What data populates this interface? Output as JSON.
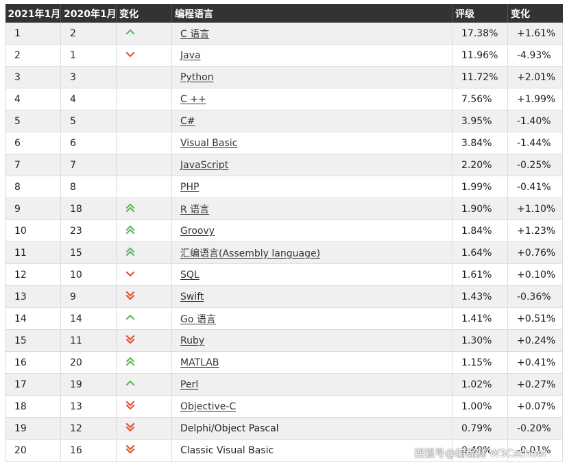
{
  "table": {
    "headers": [
      "2021年1月",
      "2020年1月",
      "变化",
      "编程语言",
      "评级",
      "变化"
    ],
    "rows": [
      {
        "rank2021": "1",
        "rank2020": "2",
        "trend": "up",
        "lang": "C 语言 ",
        "link": true,
        "rating": "17.38%",
        "change": "+1.61%"
      },
      {
        "rank2021": "2",
        "rank2020": "1",
        "trend": "down",
        "lang": "Java ",
        "link": true,
        "rating": "11.96%",
        "change": "-4.93%"
      },
      {
        "rank2021": "3",
        "rank2020": "3",
        "trend": "none",
        "lang": "Python ",
        "link": true,
        "rating": "11.72%",
        "change": "+2.01%"
      },
      {
        "rank2021": "4",
        "rank2020": "4",
        "trend": "none",
        "lang": "C ++ ",
        "link": true,
        "rating": "7.56%",
        "change": "+1.99%"
      },
      {
        "rank2021": "5",
        "rank2020": "5",
        "trend": "none",
        "lang": "C# ",
        "link": true,
        "rating": "3.95%",
        "change": "-1.40%"
      },
      {
        "rank2021": "6",
        "rank2020": "6",
        "trend": "none",
        "lang": "Visual Basic ",
        "link": true,
        "rating": "3.84%",
        "change": "-1.44%"
      },
      {
        "rank2021": "7",
        "rank2020": "7",
        "trend": "none",
        "lang": "JavaScript ",
        "link": true,
        "rating": "2.20%",
        "change": "-0.25%"
      },
      {
        "rank2021": "8",
        "rank2020": "8",
        "trend": "none",
        "lang": "PHP ",
        "link": true,
        "rating": "1.99%",
        "change": "-0.41%"
      },
      {
        "rank2021": "9",
        "rank2020": "18",
        "trend": "upup",
        "lang": "R 语言 ",
        "link": true,
        "rating": "1.90%",
        "change": "+1.10%"
      },
      {
        "rank2021": "10",
        "rank2020": "23",
        "trend": "upup",
        "lang": "Groovy ",
        "link": true,
        "rating": "1.84%",
        "change": "+1.23%"
      },
      {
        "rank2021": "11",
        "rank2020": "15",
        "trend": "upup",
        "lang": "汇编语言(Assembly language) ",
        "link": true,
        "rating": "1.64%",
        "change": "+0.76%"
      },
      {
        "rank2021": "12",
        "rank2020": "10",
        "trend": "down",
        "lang": "SQL ",
        "link": true,
        "rating": "1.61%",
        "change": "+0.10%"
      },
      {
        "rank2021": "13",
        "rank2020": "9",
        "trend": "downdown",
        "lang": "Swift ",
        "link": true,
        "rating": "1.43%",
        "change": "-0.36%"
      },
      {
        "rank2021": "14",
        "rank2020": "14",
        "trend": "up",
        "lang": "Go 语言 ",
        "link": true,
        "rating": "1.41%",
        "change": "+0.51%"
      },
      {
        "rank2021": "15",
        "rank2020": "11",
        "trend": "downdown",
        "lang": "Ruby ",
        "link": true,
        "rating": "1.30%",
        "change": "+0.24%"
      },
      {
        "rank2021": "16",
        "rank2020": "20",
        "trend": "upup",
        "lang": "MATLAB ",
        "link": true,
        "rating": "1.15%",
        "change": "+0.41%"
      },
      {
        "rank2021": "17",
        "rank2020": "19",
        "trend": "up",
        "lang": "Perl ",
        "link": true,
        "rating": "1.02%",
        "change": "+0.27%"
      },
      {
        "rank2021": "18",
        "rank2020": "13",
        "trend": "downdown",
        "lang": "Objective-C ",
        "link": true,
        "rating": "1.00%",
        "change": "+0.07%"
      },
      {
        "rank2021": "19",
        "rank2020": "12",
        "trend": "downdown",
        "lang": "Delphi/Object Pascal",
        "link": false,
        "rating": "0.79%",
        "change": "-0.20%"
      },
      {
        "rank2021": "20",
        "rank2020": "16",
        "trend": "downdown",
        "lang": "Classic Visual Basic",
        "link": false,
        "rating": "0.49%",
        "change": "-0.01%"
      }
    ]
  },
  "colors": {
    "up": "#5cb85c",
    "down": "#e0532a"
  },
  "watermark": "搜狐号@编程狮 W3Cschool"
}
